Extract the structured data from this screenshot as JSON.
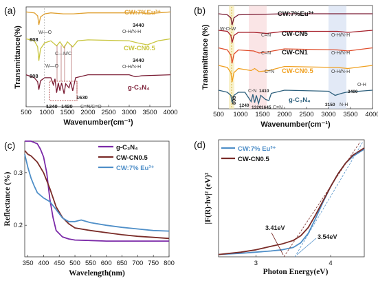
{
  "chart_data": [
    {
      "panel": "(a)",
      "type": "line",
      "xlabel": "Wavenumber(cm⁻¹)",
      "ylabel": "Transmittance(%)",
      "xlim": [
        500,
        4000
      ],
      "x_ticks": [
        "500",
        "1000",
        "1500",
        "2000",
        "2500",
        "3000",
        "3500",
        "4000"
      ],
      "series": [
        {
          "name": "CW:7%Eu³⁺",
          "color": "#e0a030",
          "offset": 95,
          "points": [
            [
              500,
              0
            ],
            [
              700,
              -1
            ],
            [
              780,
              -4
            ],
            [
              808,
              -13
            ],
            [
              850,
              -5
            ],
            [
              950,
              -2
            ],
            [
              1100,
              -1
            ],
            [
              1400,
              -2
            ],
            [
              1650,
              -2
            ],
            [
              2000,
              -1
            ],
            [
              3000,
              -1
            ],
            [
              3300,
              -1
            ],
            [
              3440,
              -2
            ],
            [
              3700,
              -1
            ],
            [
              4000,
              0
            ]
          ]
        },
        {
          "name": "CW-CN0.5",
          "color": "#c9c640",
          "offset": 68,
          "points": [
            [
              500,
              0
            ],
            [
              700,
              -2
            ],
            [
              780,
              -8
            ],
            [
              808,
              -22
            ],
            [
              850,
              -10
            ],
            [
              950,
              -4
            ],
            [
              1100,
              -2
            ],
            [
              1240,
              -7
            ],
            [
              1320,
              -3
            ],
            [
              1420,
              -9
            ],
            [
              1500,
              -3
            ],
            [
              1630,
              -8
            ],
            [
              1750,
              -2
            ],
            [
              2000,
              -1
            ],
            [
              3000,
              -2
            ],
            [
              3200,
              -4
            ],
            [
              3440,
              -6
            ],
            [
              3700,
              -2
            ],
            [
              4000,
              0
            ]
          ]
        },
        {
          "name": "g-C₃N₄",
          "color": "#7a1c34",
          "offset": 32,
          "points": [
            [
              500,
              0
            ],
            [
              700,
              -3
            ],
            [
              780,
              -7
            ],
            [
              808,
              -15
            ],
            [
              850,
              -6
            ],
            [
              950,
              -3
            ],
            [
              1100,
              -3
            ],
            [
              1160,
              -10
            ],
            [
              1200,
              -4
            ],
            [
              1240,
              -18
            ],
            [
              1280,
              -8
            ],
            [
              1320,
              -16
            ],
            [
              1360,
              -8
            ],
            [
              1420,
              -19
            ],
            [
              1460,
              -9
            ],
            [
              1540,
              -13
            ],
            [
              1580,
              -7
            ],
            [
              1630,
              -16
            ],
            [
              1700,
              -3
            ],
            [
              2000,
              0
            ],
            [
              3000,
              0
            ],
            [
              3150,
              -2
            ],
            [
              3300,
              -1
            ],
            [
              4000,
              0
            ]
          ]
        }
      ],
      "annotations": [
        "808",
        "W—O",
        "C—N/C",
        "3440",
        "O-H/N-H",
        "1240",
        "1420",
        "1630",
        "C=N/C=O"
      ]
    },
    {
      "panel": "(b)",
      "type": "line",
      "xlabel": "Wavenumber(cm⁻¹)",
      "ylabel": "Transmittance (%)",
      "xlim": [
        500,
        4000
      ],
      "x_ticks": [
        "500",
        "1000",
        "1500",
        "2000",
        "2500",
        "3000",
        "3500",
        "4000"
      ],
      "series": [
        {
          "name": "CW:7%Eu³⁺",
          "color": "#7a1c34",
          "offset": 92,
          "points": [
            [
              500,
              0
            ],
            [
              700,
              -1
            ],
            [
              780,
              -4
            ],
            [
              808,
              -11
            ],
            [
              850,
              -4
            ],
            [
              950,
              -1
            ],
            [
              2000,
              0
            ],
            [
              4000,
              0
            ]
          ]
        },
        {
          "name": "CW-CN5",
          "color": "#a51d28",
          "offset": 76,
          "points": [
            [
              500,
              0
            ],
            [
              700,
              -1
            ],
            [
              780,
              -5
            ],
            [
              808,
              -12
            ],
            [
              850,
              -5
            ],
            [
              950,
              -2
            ],
            [
              1300,
              -2
            ],
            [
              1600,
              -3
            ],
            [
              2000,
              -1
            ],
            [
              3200,
              -1
            ],
            [
              3440,
              -2
            ],
            [
              4000,
              0
            ]
          ]
        },
        {
          "name": "CW-CN1",
          "color": "#e04e2c",
          "offset": 59,
          "points": [
            [
              500,
              0
            ],
            [
              700,
              -2
            ],
            [
              780,
              -7
            ],
            [
              808,
              -15
            ],
            [
              850,
              -6
            ],
            [
              950,
              -2
            ],
            [
              1300,
              -3
            ],
            [
              1420,
              -5
            ],
            [
              1600,
              -4
            ],
            [
              2000,
              -1
            ],
            [
              3200,
              -2
            ],
            [
              3440,
              -3
            ],
            [
              4000,
              0
            ]
          ]
        },
        {
          "name": "CW-CN0.5",
          "color": "#f0a020",
          "offset": 42,
          "points": [
            [
              500,
              0
            ],
            [
              700,
              -2
            ],
            [
              780,
              -7
            ],
            [
              808,
              -16
            ],
            [
              850,
              -7
            ],
            [
              950,
              -3
            ],
            [
              1240,
              -5
            ],
            [
              1320,
              -3
            ],
            [
              1420,
              -6
            ],
            [
              1640,
              -5
            ],
            [
              2000,
              -1
            ],
            [
              3200,
              -2
            ],
            [
              3440,
              -3
            ],
            [
              4000,
              0
            ]
          ]
        },
        {
          "name": "g-C₃N₄",
          "color": "#2c5f7c",
          "offset": 18,
          "points": [
            [
              500,
              0
            ],
            [
              700,
              -2
            ],
            [
              780,
              -5
            ],
            [
              808,
              -12
            ],
            [
              850,
              -5
            ],
            [
              950,
              -2
            ],
            [
              1100,
              -2
            ],
            [
              1240,
              -11
            ],
            [
              1280,
              -4
            ],
            [
              1320,
              -12
            ],
            [
              1360,
              -5
            ],
            [
              1410,
              -13
            ],
            [
              1460,
              -5
            ],
            [
              1570,
              -9
            ],
            [
              1645,
              -10
            ],
            [
              1700,
              -3
            ],
            [
              2000,
              0
            ],
            [
              3000,
              -1
            ],
            [
              3150,
              -5
            ],
            [
              3300,
              -3
            ],
            [
              3400,
              -2
            ],
            [
              4000,
              0
            ]
          ]
        }
      ],
      "annotations": [
        "W-O-W",
        "C=N",
        "O-H/N-H",
        "808",
        "C-N",
        "1240",
        "1320",
        "1410",
        "1645",
        "3150",
        "3400",
        "N-H",
        "O-H"
      ]
    },
    {
      "panel": "(c)",
      "type": "line",
      "xlabel": "Wavelength(nm)",
      "ylabel": "Reflectance (%)",
      "xlim": [
        340,
        800
      ],
      "ylim": [
        0.14,
        0.36
      ],
      "x_ticks": [
        350,
        400,
        450,
        500,
        550,
        600,
        650,
        700,
        750,
        800
      ],
      "y_ticks": [
        0.2,
        0.3
      ],
      "legend": "top-right",
      "series": [
        {
          "name": "g-C₃N₄",
          "color": "#7b2aa8",
          "x": [
            340,
            360,
            380,
            390,
            400,
            410,
            420,
            430,
            440,
            460,
            480,
            500,
            550,
            600,
            700,
            800
          ],
          "y": [
            0.36,
            0.36,
            0.355,
            0.345,
            0.33,
            0.3,
            0.25,
            0.215,
            0.19,
            0.178,
            0.174,
            0.172,
            0.171,
            0.17,
            0.17,
            0.17
          ]
        },
        {
          "name": "CW-CN0.5",
          "color": "#7a2c28",
          "x": [
            340,
            350,
            360,
            380,
            400,
            420,
            440,
            460,
            480,
            500,
            550,
            600,
            650,
            700,
            750,
            800
          ],
          "y": [
            0.342,
            0.335,
            0.332,
            0.32,
            0.3,
            0.27,
            0.235,
            0.215,
            0.203,
            0.195,
            0.19,
            0.186,
            0.182,
            0.179,
            0.177,
            0.175
          ]
        },
        {
          "name": "CW:7% Eu³⁺",
          "color": "#4f8fc8",
          "x": [
            340,
            350,
            360,
            370,
            380,
            400,
            420,
            440,
            460,
            480,
            500,
            520,
            550,
            600,
            650,
            700,
            750,
            800
          ],
          "y": [
            0.335,
            0.31,
            0.29,
            0.275,
            0.262,
            0.252,
            0.245,
            0.23,
            0.214,
            0.207,
            0.207,
            0.21,
            0.205,
            0.2,
            0.196,
            0.193,
            0.19,
            0.189
          ]
        }
      ]
    },
    {
      "panel": "(d)",
      "type": "line",
      "xlabel": "Photon Energy(eV)",
      "ylabel": "|F(R)·hv|² (eV)²",
      "xlim": [
        2.5,
        4.45
      ],
      "ylim": [
        0,
        1.0
      ],
      "x_ticks": [
        3,
        4
      ],
      "legend": "top-left",
      "series": [
        {
          "name": "CW:7% Eu³⁺",
          "color": "#4f8fc8",
          "x": [
            2.5,
            2.8,
            3.0,
            3.2,
            3.35,
            3.5,
            3.6,
            3.7,
            3.8,
            3.9,
            4.0,
            4.1,
            4.2,
            4.3,
            4.4,
            4.45
          ],
          "y": [
            0.02,
            0.03,
            0.04,
            0.05,
            0.06,
            0.08,
            0.12,
            0.2,
            0.33,
            0.47,
            0.6,
            0.71,
            0.8,
            0.86,
            0.9,
            0.92
          ]
        },
        {
          "name": "CW-CN0.5",
          "color": "#7a2c28",
          "x": [
            2.5,
            2.8,
            3.0,
            3.2,
            3.35,
            3.5,
            3.6,
            3.7,
            3.8,
            3.9,
            4.0,
            4.1,
            4.2,
            4.3,
            4.4,
            4.45
          ],
          "y": [
            0.02,
            0.04,
            0.06,
            0.09,
            0.11,
            0.14,
            0.18,
            0.25,
            0.36,
            0.48,
            0.6,
            0.71,
            0.8,
            0.87,
            0.91,
            0.93
          ]
        }
      ],
      "annotations": [
        "3.41eV",
        "3.54eV"
      ]
    }
  ]
}
